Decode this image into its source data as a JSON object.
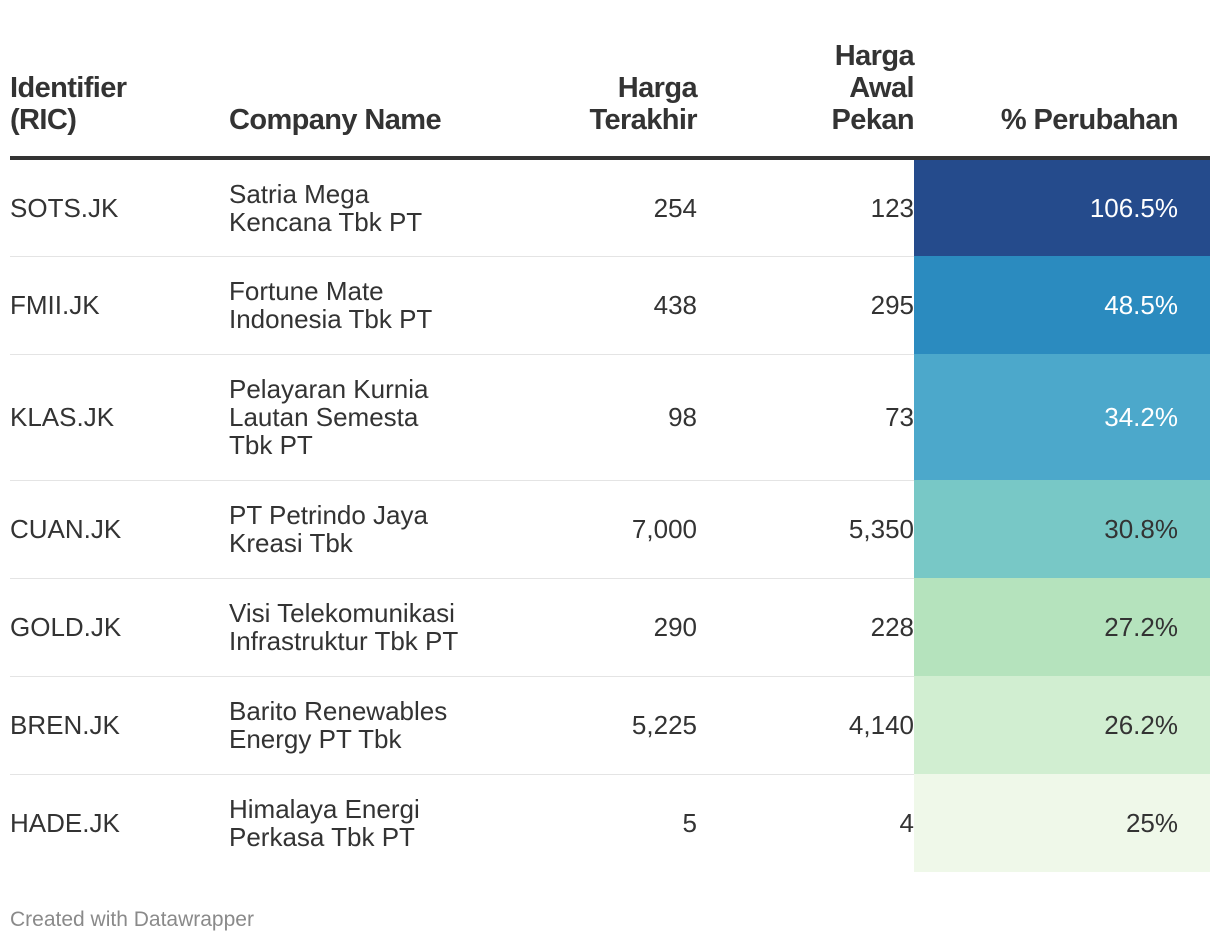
{
  "chart_data": {
    "type": "table",
    "columns": [
      "Identifier\n(RIC)",
      "Company Name",
      "Harga\nTerakhir",
      "Harga\nAwal\nPekan",
      "% Perubahan"
    ],
    "rows": [
      {
        "ric": "SOTS.JK",
        "company": "Satria Mega\nKencana Tbk PT",
        "last": "254",
        "week_open": "123",
        "change": "106.5%",
        "color": "#254b8c",
        "text_color": "#ffffff"
      },
      {
        "ric": "FMII.JK",
        "company": "Fortune Mate\nIndonesia Tbk PT",
        "last": "438",
        "week_open": "295",
        "change": "48.5%",
        "color": "#2b8bbf",
        "text_color": "#ffffff"
      },
      {
        "ric": "KLAS.JK",
        "company": "Pelayaran Kurnia\nLautan Semesta\nTbk PT",
        "last": "98",
        "week_open": "73",
        "change": "34.2%",
        "color": "#4ca8cb",
        "text_color": "#ffffff"
      },
      {
        "ric": "CUAN.JK",
        "company": "PT Petrindo Jaya\nKreasi Tbk",
        "last": "7,000",
        "week_open": "5,350",
        "change": "30.8%",
        "color": "#78c8c6",
        "text_color": "#333333"
      },
      {
        "ric": "GOLD.JK",
        "company": "Visi Telekomunikasi\nInfrastruktur Tbk PT",
        "last": "290",
        "week_open": "228",
        "change": "27.2%",
        "color": "#b5e3bd",
        "text_color": "#333333"
      },
      {
        "ric": "BREN.JK",
        "company": "Barito Renewables\nEnergy PT Tbk",
        "last": "5,225",
        "week_open": "4,140",
        "change": "26.2%",
        "color": "#d1eed1",
        "text_color": "#333333"
      },
      {
        "ric": "HADE.JK",
        "company": "Himalaya Energi\nPerkasa Tbk PT",
        "last": "5",
        "week_open": "4",
        "change": "25%",
        "color": "#eff8e9",
        "text_color": "#333333"
      }
    ]
  },
  "footer": "Created with Datawrapper"
}
